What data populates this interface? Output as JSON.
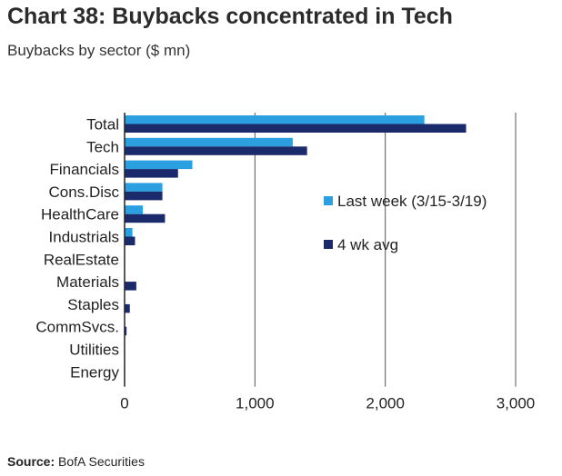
{
  "header": {
    "title": "Chart 38: Buybacks concentrated in Tech",
    "subtitle": "Buybacks by sector ($ mn)"
  },
  "footer": {
    "source_label": "Source:",
    "source_text": "BofA Securities"
  },
  "colors": {
    "last_week": "#2b9fe0",
    "avg": "#1b2a6b",
    "grid": "#555555"
  },
  "chart_data": {
    "type": "bar",
    "orientation": "horizontal",
    "title": "Chart 38: Buybacks concentrated in Tech",
    "subtitle": "Buybacks by sector ($ mn)",
    "xlabel": "",
    "ylabel": "",
    "xlim": [
      0,
      3000
    ],
    "xticks": [
      0,
      1000,
      2000,
      3000
    ],
    "xtick_labels": [
      "0",
      "1,000",
      "2,000",
      "3,000"
    ],
    "grid": "vertical",
    "legend_position": "right",
    "categories": [
      "Total",
      "Tech",
      "Financials",
      "Cons.Disc",
      "HealthCare",
      "Industrials",
      "RealEstate",
      "Materials",
      "Staples",
      "CommSvcs.",
      "Utilities",
      "Energy"
    ],
    "series": [
      {
        "name": "Last week (3/15-3/19)",
        "values": [
          2300,
          1290,
          520,
          290,
          140,
          60,
          0,
          0,
          0,
          0,
          0,
          0
        ]
      },
      {
        "name": "4 wk avg",
        "values": [
          2620,
          1400,
          410,
          290,
          310,
          80,
          0,
          90,
          40,
          15,
          0,
          0
        ]
      }
    ]
  }
}
